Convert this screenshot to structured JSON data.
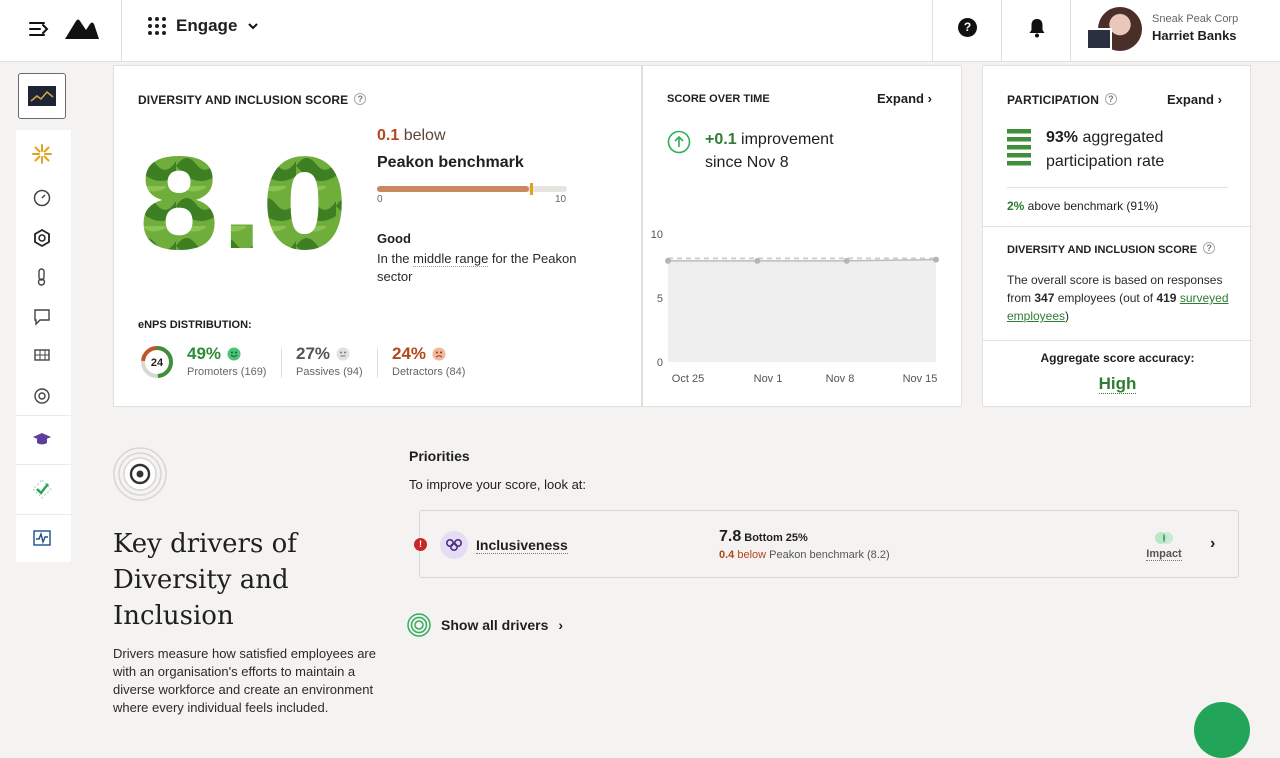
{
  "header": {
    "app_name": "Engage",
    "help_label": "?",
    "company": "Sneak Peak Corp",
    "user_name": "Harriet Banks"
  },
  "score_card": {
    "title": "DIVERSITY AND INCLUSION SCORE",
    "score": "8.0",
    "benchmark_diff_value": "0.1",
    "benchmark_diff_word": "below",
    "benchmark_name": "Peakon benchmark",
    "scale_min": "0",
    "scale_max": "10",
    "score_fraction": 0.8,
    "benchmark_fraction": 0.81,
    "rating": "Good",
    "rating_desc_pre": "In the ",
    "rating_desc_link": "middle range",
    "rating_desc_post": " for the Peakon sector",
    "enps_title": "eNPS DISTRIBUTION:",
    "enps_value": "24",
    "promoters_pct": "49%",
    "promoters_label": "Promoters (169)",
    "passives_pct": "27%",
    "passives_label": "Passives (94)",
    "detractors_pct": "24%",
    "detractors_label": "Detractors (84)"
  },
  "time_card": {
    "title": "SCORE OVER TIME",
    "expand": "Expand",
    "improvement_value": "+0.1",
    "improvement_text": " improvement",
    "since": "since Nov 8"
  },
  "participation_card": {
    "title": "PARTICIPATION",
    "expand": "Expand",
    "rate_pct": "93%",
    "rate_text_1": " aggregated",
    "rate_text_2": "participation rate",
    "above_pct": "2%",
    "above_text": " above benchmark (91%)",
    "dis_title": "DIVERSITY AND INCLUSION SCORE",
    "dis_desc_1": "The overall score is based on responses from ",
    "dis_count": "347",
    "dis_desc_2": " employees (out of ",
    "dis_total": "419",
    "dis_link": "surveyed employees",
    "dis_desc_3": ")",
    "accuracy_title": "Aggregate score accuracy:",
    "accuracy_value": "High"
  },
  "drivers": {
    "title": "Key drivers of Diversity and Inclusion",
    "description": "Drivers measure how satisfied employees are with an organisation's efforts to maintain a diverse workforce and create an environment where every individual feels included.",
    "priorities_title": "Priorities",
    "priorities_sub": "To improve your score, look at:",
    "priority_name": "Inclusiveness",
    "priority_score": "7.8",
    "priority_rank": "Bottom 25%",
    "priority_diff": "0.4",
    "priority_diff_word": "below",
    "priority_bench": " Peakon benchmark (8.2)",
    "impact_label": "Impact",
    "show_all": "Show all drivers"
  },
  "chart_data": {
    "type": "line",
    "title": "",
    "x": [
      "Oct 25",
      "Nov 1",
      "Nov 8",
      "Nov 15"
    ],
    "series": [
      {
        "values": [
          7.9,
          7.9,
          7.9,
          8.0
        ]
      },
      {
        "values": [
          8.1,
          8.1,
          8.1,
          8.1
        ]
      }
    ],
    "yticks": [
      "0",
      "5",
      "10"
    ],
    "ylim": [
      0,
      10
    ],
    "grid": false
  },
  "colors": {
    "accent_green": "#2e7d32",
    "below_orange": "#b4461a",
    "score_green": "#5a9e2f"
  }
}
